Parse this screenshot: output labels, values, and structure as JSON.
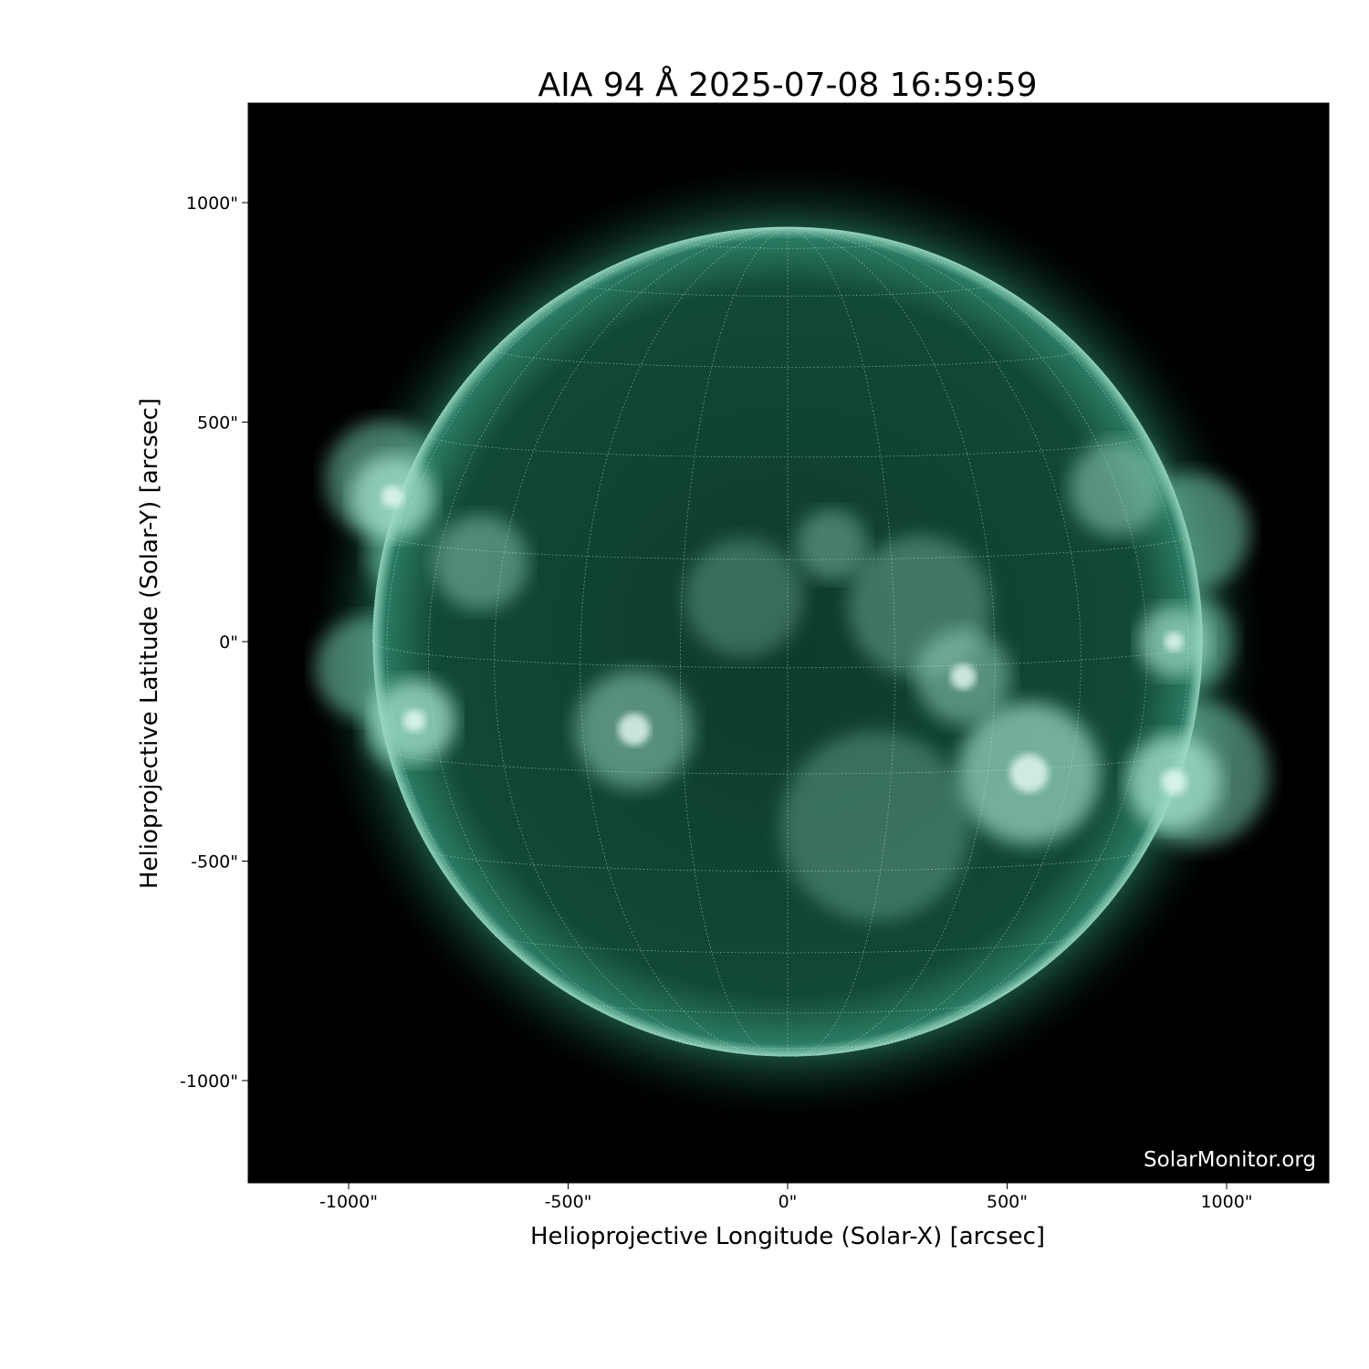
{
  "chart_data": {
    "type": "image",
    "title": "AIA 94 Å 2025-07-08 16:59:59",
    "xlabel": "Helioprojective Longitude (Solar-X) [arcsec]",
    "ylabel": "Helioprojective Latitude (Solar-Y) [arcsec]",
    "xlim": [
      -1230,
      1230
    ],
    "ylim": [
      -1230,
      1230
    ],
    "x_ticks": [
      -1000,
      -500,
      0,
      500,
      1000
    ],
    "x_tick_labels": [
      "-1000\"",
      "-500\"",
      "0\"",
      "500\"",
      "1000\""
    ],
    "y_ticks": [
      1000,
      500,
      0,
      -500,
      -1000
    ],
    "y_tick_labels": [
      "1000\"",
      "500\"",
      "0\"",
      "-500\"",
      "-1000\""
    ],
    "solar_radius_arcsec": 945,
    "grid": true,
    "grid_spacing_deg": 15,
    "colormap": "sdoaia94",
    "colors": {
      "disk": "#0d3a2c",
      "bright": "#d8f2ea",
      "corona": "#2f8a70",
      "background": "#000000"
    }
  },
  "watermark": "SolarMonitor.org"
}
